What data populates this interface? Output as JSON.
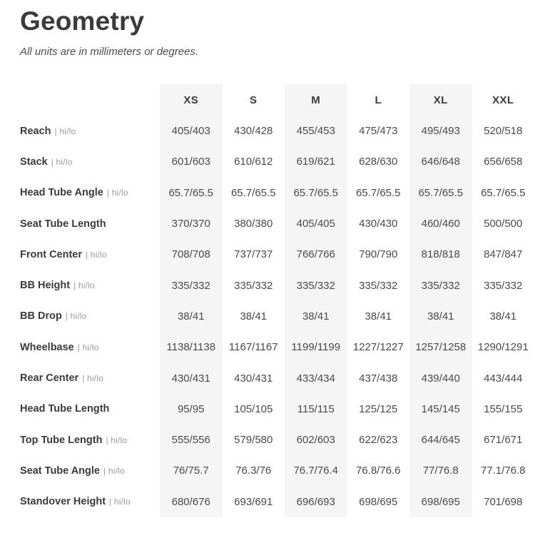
{
  "page": {
    "title": "Geometry",
    "subtitle": "All units are in millimeters or degrees."
  },
  "table": {
    "sizes": [
      "XS",
      "S",
      "M",
      "L",
      "XL",
      "XXL"
    ],
    "rows": [
      {
        "label": "Reach",
        "suffix": "| hi/lo",
        "values": [
          "405/403",
          "430/428",
          "455/453",
          "475/473",
          "495/493",
          "520/518"
        ]
      },
      {
        "label": "Stack",
        "suffix": "| hi/lo",
        "values": [
          "601/603",
          "610/612",
          "619/621",
          "628/630",
          "646/648",
          "656/658"
        ]
      },
      {
        "label": "Head Tube Angle",
        "suffix": "| hi/lo",
        "values": [
          "65.7/65.5",
          "65.7/65.5",
          "65.7/65.5",
          "65.7/65.5",
          "65.7/65.5",
          "65.7/65.5"
        ]
      },
      {
        "label": "Seat Tube Length",
        "suffix": "",
        "values": [
          "370/370",
          "380/380",
          "405/405",
          "430/430",
          "460/460",
          "500/500"
        ]
      },
      {
        "label": "Front Center",
        "suffix": "| hi/lo",
        "values": [
          "708/708",
          "737/737",
          "766/766",
          "790/790",
          "818/818",
          "847/847"
        ]
      },
      {
        "label": "BB Height",
        "suffix": "| hi/lo",
        "values": [
          "335/332",
          "335/332",
          "335/332",
          "335/332",
          "335/332",
          "335/332"
        ]
      },
      {
        "label": "BB Drop",
        "suffix": "| hi/lo",
        "values": [
          "38/41",
          "38/41",
          "38/41",
          "38/41",
          "38/41",
          "38/41"
        ]
      },
      {
        "label": "Wheelbase",
        "suffix": "| hi/lo",
        "values": [
          "1138/1138",
          "1167/1167",
          "1199/1199",
          "1227/1227",
          "1257/1258",
          "1290/1291"
        ]
      },
      {
        "label": "Rear Center",
        "suffix": "| hi/lo",
        "values": [
          "430/431",
          "430/431",
          "433/434",
          "437/438",
          "439/440",
          "443/444"
        ]
      },
      {
        "label": "Head Tube Length",
        "suffix": "",
        "values": [
          "95/95",
          "105/105",
          "115/115",
          "125/125",
          "145/145",
          "155/155"
        ]
      },
      {
        "label": "Top Tube Length",
        "suffix": "| hi/lo",
        "values": [
          "555/556",
          "579/580",
          "602/603",
          "622/623",
          "644/645",
          "671/671"
        ]
      },
      {
        "label": "Seat Tube Angle",
        "suffix": "| hi/lo",
        "values": [
          "76/75.7",
          "76.3/76",
          "76.7/76.4",
          "76.8/76.6",
          "77/76.8",
          "77.1/76.8"
        ]
      },
      {
        "label": "Standover Height",
        "suffix": "| hi/lo",
        "values": [
          "680/676",
          "693/691",
          "696/693",
          "698/695",
          "698/695",
          "701/698"
        ]
      }
    ]
  },
  "colors": {
    "stripe": "#f5f5f5",
    "heading_text": "#3b3b3b",
    "value_text": "#4a4a4a",
    "muted_text": "#9b9b9b"
  }
}
